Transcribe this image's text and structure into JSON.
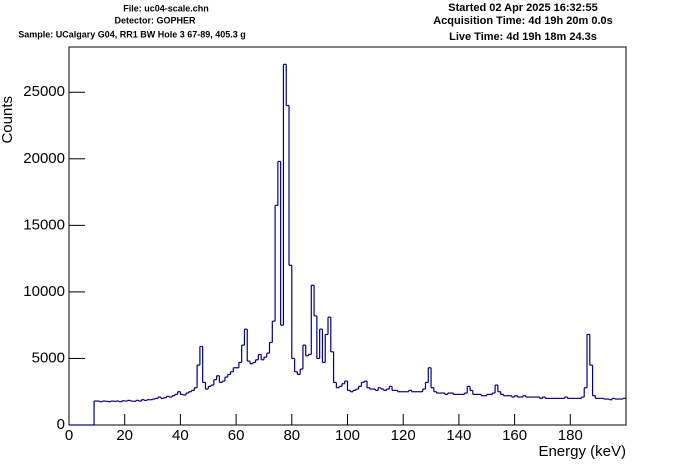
{
  "chart_data": {
    "type": "histogram",
    "annotations": [
      "File: uc04-scale.chn",
      "Detector: GOPHER",
      "Sample: UCalgary G04, RR1 BW Hole 3 67-89, 405.3 g",
      "Started 02 Apr 2025 16:32:55",
      "Acquisition Time: 4d 19h 20m 0.0s",
      "Live Time: 4d 19h 18m 24.3s"
    ],
    "y_label": "Counts",
    "x_label": "Energy (keV)",
    "color": "#000080",
    "xlim": [
      0,
      200
    ],
    "ylim": [
      0,
      28400
    ],
    "xticks": [
      0,
      20,
      40,
      60,
      80,
      100,
      120,
      140,
      160,
      180
    ],
    "yticks": [
      0,
      5000,
      10000,
      15000,
      20000,
      25000
    ],
    "bins": [
      0,
      1,
      2,
      3,
      4,
      5,
      6,
      7,
      8,
      9,
      10,
      11,
      12,
      13,
      14,
      15,
      16,
      17,
      18,
      19,
      20,
      21,
      22,
      23,
      24,
      25,
      26,
      27,
      28,
      29,
      30,
      31,
      32,
      33,
      34,
      35,
      36,
      37,
      38,
      39,
      40,
      41,
      42,
      43,
      44,
      45,
      46,
      47,
      48,
      49,
      50,
      51,
      52,
      53,
      54,
      55,
      56,
      57,
      58,
      59,
      60,
      61,
      62,
      63,
      64,
      65,
      66,
      67,
      68,
      69,
      70,
      71,
      72,
      73,
      74,
      75,
      76,
      77,
      78,
      79,
      80,
      81,
      82,
      83,
      84,
      85,
      86,
      87,
      88,
      89,
      90,
      91,
      92,
      93,
      94,
      95,
      96,
      97,
      98,
      99,
      100,
      101,
      102,
      103,
      104,
      105,
      106,
      107,
      108,
      109,
      110,
      111,
      112,
      113,
      114,
      115,
      116,
      117,
      118,
      119,
      120,
      121,
      122,
      123,
      124,
      125,
      126,
      127,
      128,
      129,
      130,
      131,
      132,
      133,
      134,
      135,
      136,
      137,
      138,
      139,
      140,
      141,
      142,
      143,
      144,
      145,
      146,
      147,
      148,
      149,
      150,
      151,
      152,
      153,
      154,
      155,
      156,
      157,
      158,
      159,
      160,
      161,
      162,
      163,
      164,
      165,
      166,
      167,
      168,
      169,
      170,
      171,
      172,
      173,
      174,
      175,
      176,
      177,
      178,
      179,
      180,
      181,
      182,
      183,
      184,
      185,
      186,
      187,
      188,
      189,
      190,
      191,
      192,
      193,
      194,
      195,
      196,
      197,
      198,
      199,
      200
    ],
    "counts": [
      0,
      0,
      0,
      0,
      0,
      0,
      0,
      0,
      0,
      1800,
      1800,
      1750,
      1800,
      1780,
      1750,
      1800,
      1780,
      1800,
      1750,
      1820,
      1800,
      1850,
      1800,
      1780,
      1850,
      1800,
      1900,
      1850,
      1900,
      1900,
      1950,
      2000,
      2100,
      2000,
      2050,
      2150,
      2100,
      2200,
      2300,
      2500,
      2300,
      2250,
      2400,
      2500,
      2600,
      2800,
      4500,
      5900,
      3200,
      2700,
      2900,
      3000,
      3400,
      3700,
      3200,
      3300,
      3600,
      3800,
      4000,
      4300,
      4300,
      4700,
      6000,
      7200,
      4800,
      4600,
      4700,
      4900,
      5300,
      4900,
      5100,
      5400,
      6200,
      7800,
      16500,
      19800,
      7500,
      27100,
      24000,
      12000,
      5000,
      4000,
      3800,
      4200,
      6000,
      5200,
      5300,
      10500,
      8200,
      5000,
      7200,
      4700,
      6800,
      8100,
      5500,
      3200,
      2800,
      2900,
      3100,
      3300,
      2600,
      2500,
      2600,
      2700,
      2900,
      3200,
      3300,
      2800,
      2700,
      2700,
      2600,
      2800,
      2700,
      2600,
      2700,
      2900,
      2600,
      2600,
      2500,
      2500,
      2500,
      2500,
      2600,
      2500,
      2500,
      2500,
      2500,
      2700,
      3200,
      4300,
      2800,
      2500,
      2400,
      2400,
      2400,
      2300,
      2400,
      2400,
      2300,
      2300,
      2300,
      2300,
      2400,
      2900,
      2600,
      2300,
      2300,
      2300,
      2200,
      2200,
      2300,
      2300,
      2400,
      3000,
      2500,
      2300,
      2200,
      2200,
      2200,
      2100,
      2200,
      2100,
      2100,
      2200,
      2100,
      2100,
      2100,
      2100,
      2100,
      2000,
      2100,
      2000,
      2000,
      2000,
      2000,
      2000,
      2000,
      2000,
      2100,
      2000,
      2000,
      2000,
      2000,
      2000,
      2100,
      2800,
      6800,
      4500,
      2200,
      2000,
      2000,
      2000,
      1950,
      1950,
      1900,
      2000,
      1950,
      1950,
      1950,
      2000
    ]
  }
}
